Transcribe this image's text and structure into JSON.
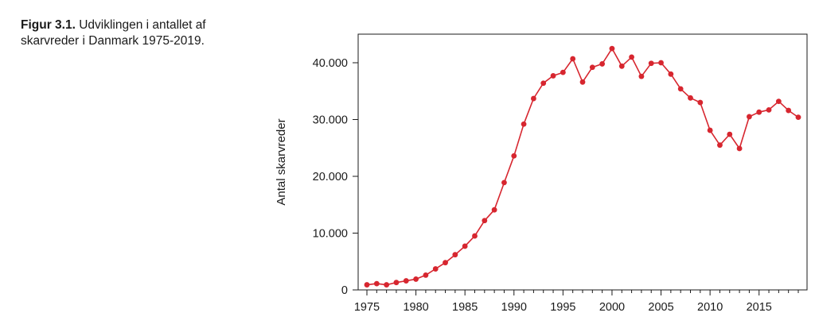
{
  "figure": {
    "caption_label": "Figur 3.1.",
    "caption_text": "Udviklingen i antallet af skarvreder i Danmark 1975-2019."
  },
  "chart_data": {
    "type": "line",
    "title": "",
    "xlabel": "",
    "ylabel": "Antal skarvreder",
    "xlim": [
      1974,
      2020
    ],
    "ylim": [
      0,
      45000
    ],
    "x_ticks": [
      1975,
      1980,
      1985,
      1990,
      1995,
      2000,
      2005,
      2010,
      2015
    ],
    "x_tick_labels": [
      "1975",
      "1980",
      "1985",
      "1990",
      "1995",
      "2000",
      "2005",
      "2010",
      "2015"
    ],
    "y_ticks": [
      0,
      10000,
      20000,
      30000,
      40000
    ],
    "y_tick_labels": [
      "0",
      "10.000",
      "20.000",
      "30.000",
      "40.000"
    ],
    "grid": false,
    "series_color": "#d7262f",
    "series": [
      {
        "x": [
          1975,
          1976,
          1977,
          1978,
          1979,
          1980,
          1981,
          1982,
          1983,
          1984,
          1985,
          1986,
          1987,
          1988,
          1989,
          1990,
          1991,
          1992,
          1993,
          1994,
          1995,
          1996,
          1997,
          1998,
          1999,
          2000,
          2001,
          2002,
          2003,
          2004,
          2005,
          2006,
          2007,
          2008,
          2009,
          2010,
          2011,
          2012,
          2013,
          2014,
          2015,
          2016,
          2017,
          2018,
          2019
        ],
        "values": [
          900,
          1100,
          900,
          1300,
          1600,
          1900,
          2600,
          3700,
          4800,
          6200,
          7700,
          9500,
          12200,
          14100,
          18900,
          23600,
          29200,
          33700,
          36400,
          37700,
          38300,
          40700,
          36600,
          39200,
          39800,
          42500,
          39400,
          41000,
          37600,
          39900,
          40000,
          38000,
          35400,
          33800,
          33000,
          28100,
          25500,
          27400,
          24900,
          30500,
          31300,
          31700,
          33200,
          31600,
          30400
        ]
      }
    ]
  }
}
